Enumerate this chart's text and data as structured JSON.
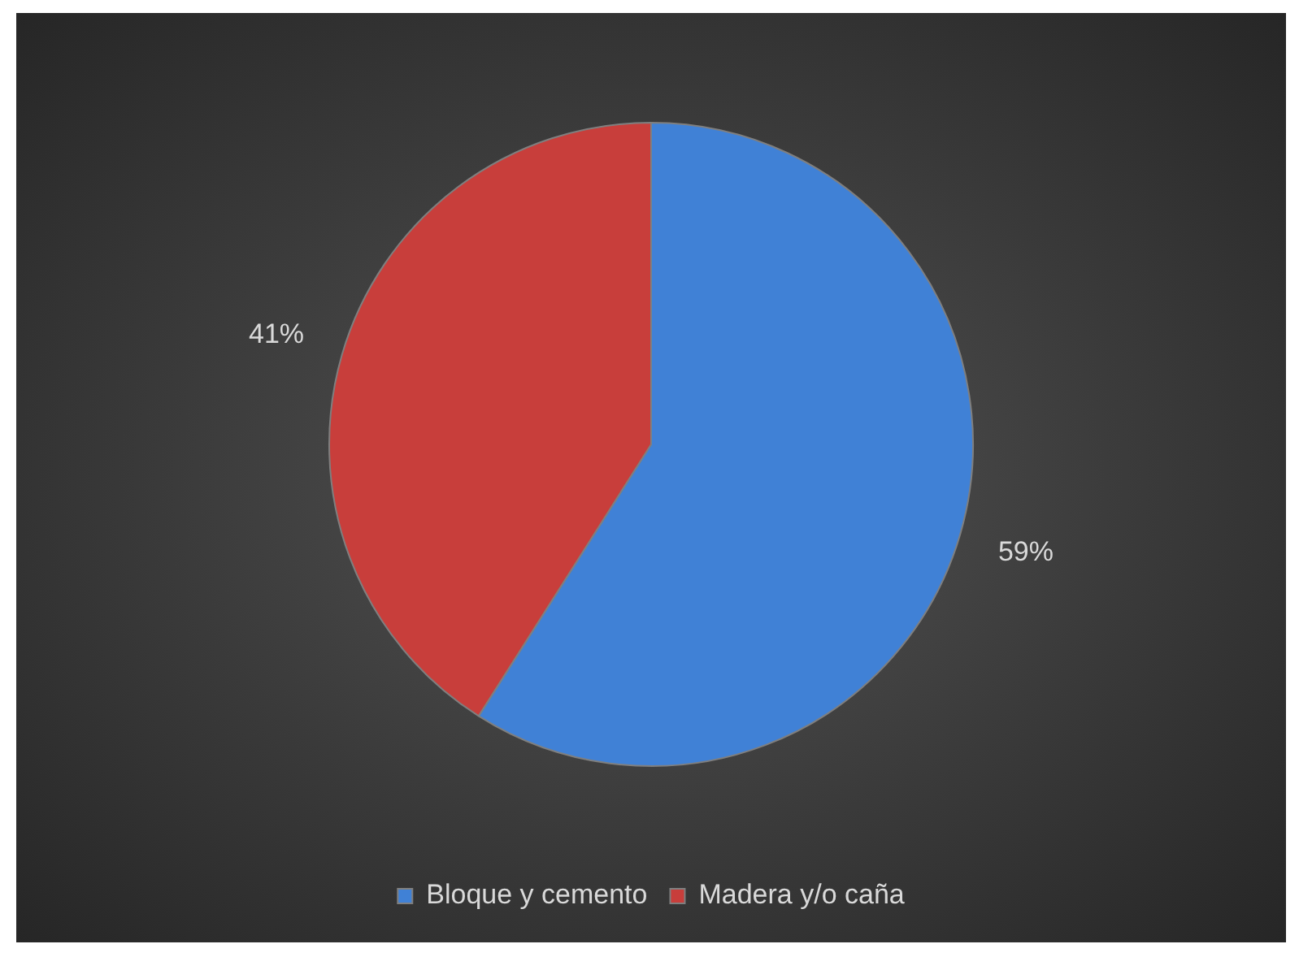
{
  "chart_data": {
    "type": "pie",
    "categories": [
      "Bloque y cemento",
      "Madera y/o caña"
    ],
    "values": [
      59,
      41
    ],
    "colors": [
      "#4081d6",
      "#c83e3b"
    ],
    "value_labels": [
      "59%",
      "41%"
    ],
    "legend": "bottom"
  }
}
